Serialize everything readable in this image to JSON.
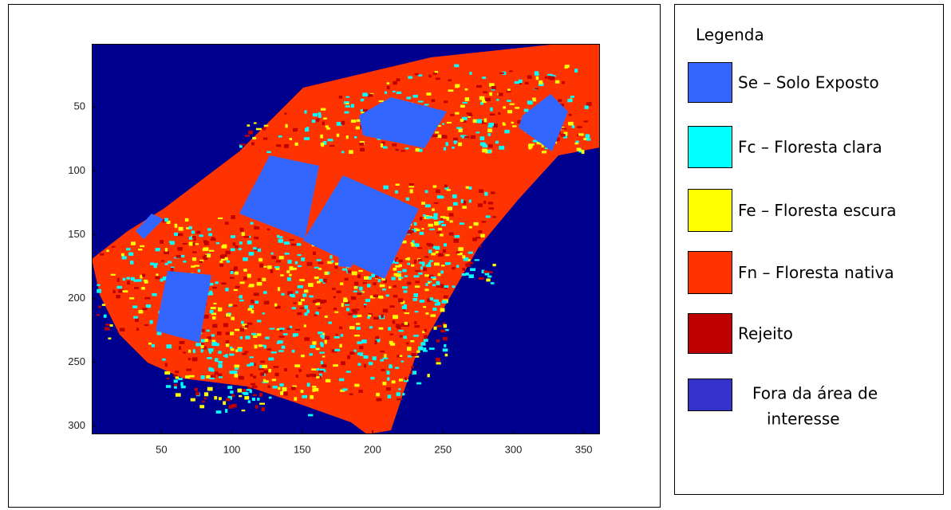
{
  "chart_data": {
    "type": "image",
    "xlim": [
      0.5,
      361.5
    ],
    "ylim": [
      0.5,
      306.5
    ],
    "y_reversed": true,
    "xticks": [
      50,
      100,
      150,
      200,
      250,
      300,
      350
    ],
    "yticks": [
      50,
      100,
      150,
      200,
      250,
      300
    ],
    "background_color": "#00008f",
    "legend": {
      "title": "Legenda",
      "items": [
        {
          "label": [
            "Se – Solo Exposto"
          ],
          "color": "#3366ff"
        },
        {
          "label": [
            "Fc – Floresta clara"
          ],
          "color": "#00ffff"
        },
        {
          "label": [
            "Fe – Floresta escura"
          ],
          "color": "#ffff00"
        },
        {
          "label": [
            "Fn – Floresta nativa"
          ],
          "color": "#ff3300"
        },
        {
          "label": [
            "Rejeito"
          ],
          "color": "#c00000"
        },
        {
          "label": [
            "Fora da área de",
            "interesse"
          ],
          "color": "#3333cc"
        }
      ]
    }
  }
}
